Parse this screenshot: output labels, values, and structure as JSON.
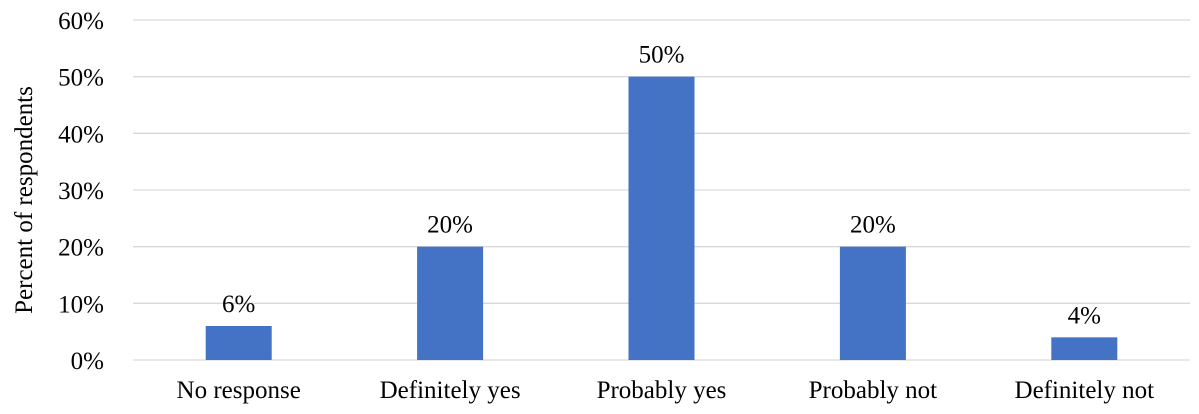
{
  "chart_data": {
    "type": "bar",
    "categories": [
      "No response",
      "Definitely yes",
      "Probably yes",
      "Probably not",
      "Definitely not"
    ],
    "values": [
      6,
      20,
      50,
      20,
      4
    ],
    "data_labels": [
      "6%",
      "20%",
      "50%",
      "20%",
      "4%"
    ],
    "title": "",
    "xlabel": "",
    "ylabel": "Percent of respondents",
    "ylim": [
      0,
      60
    ],
    "yticks": [
      0,
      10,
      20,
      30,
      40,
      50,
      60
    ],
    "ytick_labels": [
      "0%",
      "10%",
      "20%",
      "30%",
      "40%",
      "50%",
      "60%"
    ],
    "grid": true,
    "legend": "none",
    "bar_color": "#4472c4"
  }
}
